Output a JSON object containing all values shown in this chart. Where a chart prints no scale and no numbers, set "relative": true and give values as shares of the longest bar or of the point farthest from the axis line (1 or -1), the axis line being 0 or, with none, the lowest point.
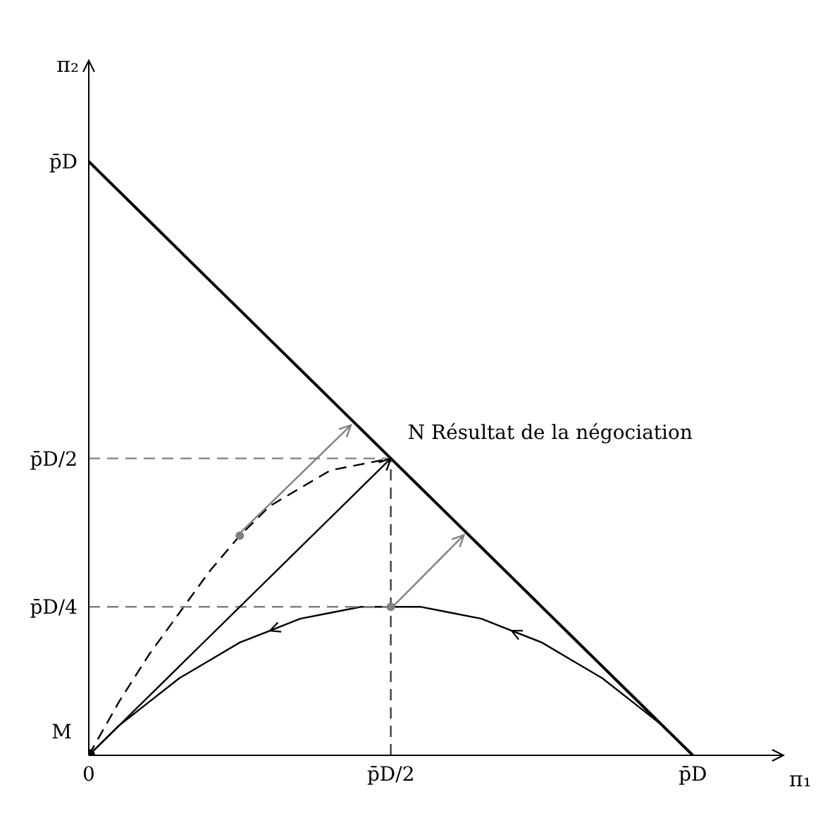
{
  "chart_data": {
    "type": "line",
    "relative": true,
    "xlabel": "π₁",
    "ylabel": "π₂",
    "grid": false,
    "categories": [
      "0",
      null,
      null,
      null,
      null,
      null,
      null,
      null,
      null,
      null,
      "p̄D/2",
      null,
      null,
      null,
      null,
      null,
      null,
      null,
      null,
      null,
      "p̄D"
    ],
    "series": [
      {
        "color": "#000000",
        "values": [
          1,
          0.95,
          0.9,
          0.85,
          0.8,
          0.75,
          0.7,
          0.65,
          0.6,
          0.55,
          0.5,
          0.45,
          0.4,
          0.35,
          0.3,
          0.25,
          0.2,
          0.15,
          0.1,
          0.05,
          0
        ]
      },
      {
        "color": "#000000",
        "values": [
          0,
          0.05,
          0.09,
          0.13,
          0.16,
          0.19,
          0.21,
          0.23,
          0.24,
          0.25,
          0.25,
          0.25,
          0.24,
          0.23,
          0.21,
          0.19,
          0.16,
          0.13,
          0.09,
          0.05,
          0
        ]
      },
      {
        "color": "#000000",
        "line_style": "dashed",
        "values": [
          0,
          0.09,
          0.17,
          0.24,
          0.31,
          0.37,
          0.42,
          0.45,
          0.48,
          0.49,
          0.5,
          null,
          null,
          null,
          null,
          null,
          null,
          null,
          null,
          null,
          null
        ]
      },
      {
        "color": "#808080",
        "line_style": "dashed",
        "values": [
          0.5,
          0.5,
          0.5,
          0.5,
          0.5,
          0.5,
          0.5,
          0.5,
          0.5,
          0.5,
          0.5,
          null,
          null,
          null,
          null,
          null,
          null,
          null,
          null,
          null,
          null
        ]
      },
      {
        "color": "#808080",
        "line_style": "dashed",
        "values": [
          0.25,
          0.25,
          0.25,
          0.25,
          0.25,
          0.25,
          0.25,
          0.25,
          0.25,
          0.25,
          0.25,
          null,
          null,
          null,
          null,
          null,
          null,
          null,
          null,
          null,
          null
        ]
      },
      {
        "type": "scatter",
        "color": "#808080",
        "values": [
          null,
          null,
          null,
          null,
          null,
          0.37,
          null,
          null,
          null,
          null,
          0.25,
          null,
          null,
          null,
          null,
          null,
          null,
          null,
          null,
          null,
          null
        ]
      },
      {
        "type": "scatter",
        "color": "#000000",
        "values": [
          0,
          null,
          null,
          null,
          null,
          null,
          null,
          null,
          null,
          null,
          null,
          null,
          null,
          null,
          null,
          null,
          null,
          null,
          null,
          null,
          null
        ]
      }
    ],
    "ref_lines": [
      {
        "axis": "x",
        "value": "p̄D/2",
        "color": "#404040",
        "line_style": "dashed"
      }
    ],
    "annotations": [
      {
        "text": "M",
        "x": "0",
        "y": 0
      },
      {
        "text": "p̄D",
        "x": "0",
        "y": 1
      },
      {
        "text": "p̄D/2",
        "x": "0",
        "y": 0.5
      },
      {
        "text": "p̄D/4",
        "x": "0",
        "y": 0.25
      },
      {
        "text": "N Résultat de la négociation",
        "x": "p̄D/2",
        "y": 0.5
      }
    ]
  }
}
